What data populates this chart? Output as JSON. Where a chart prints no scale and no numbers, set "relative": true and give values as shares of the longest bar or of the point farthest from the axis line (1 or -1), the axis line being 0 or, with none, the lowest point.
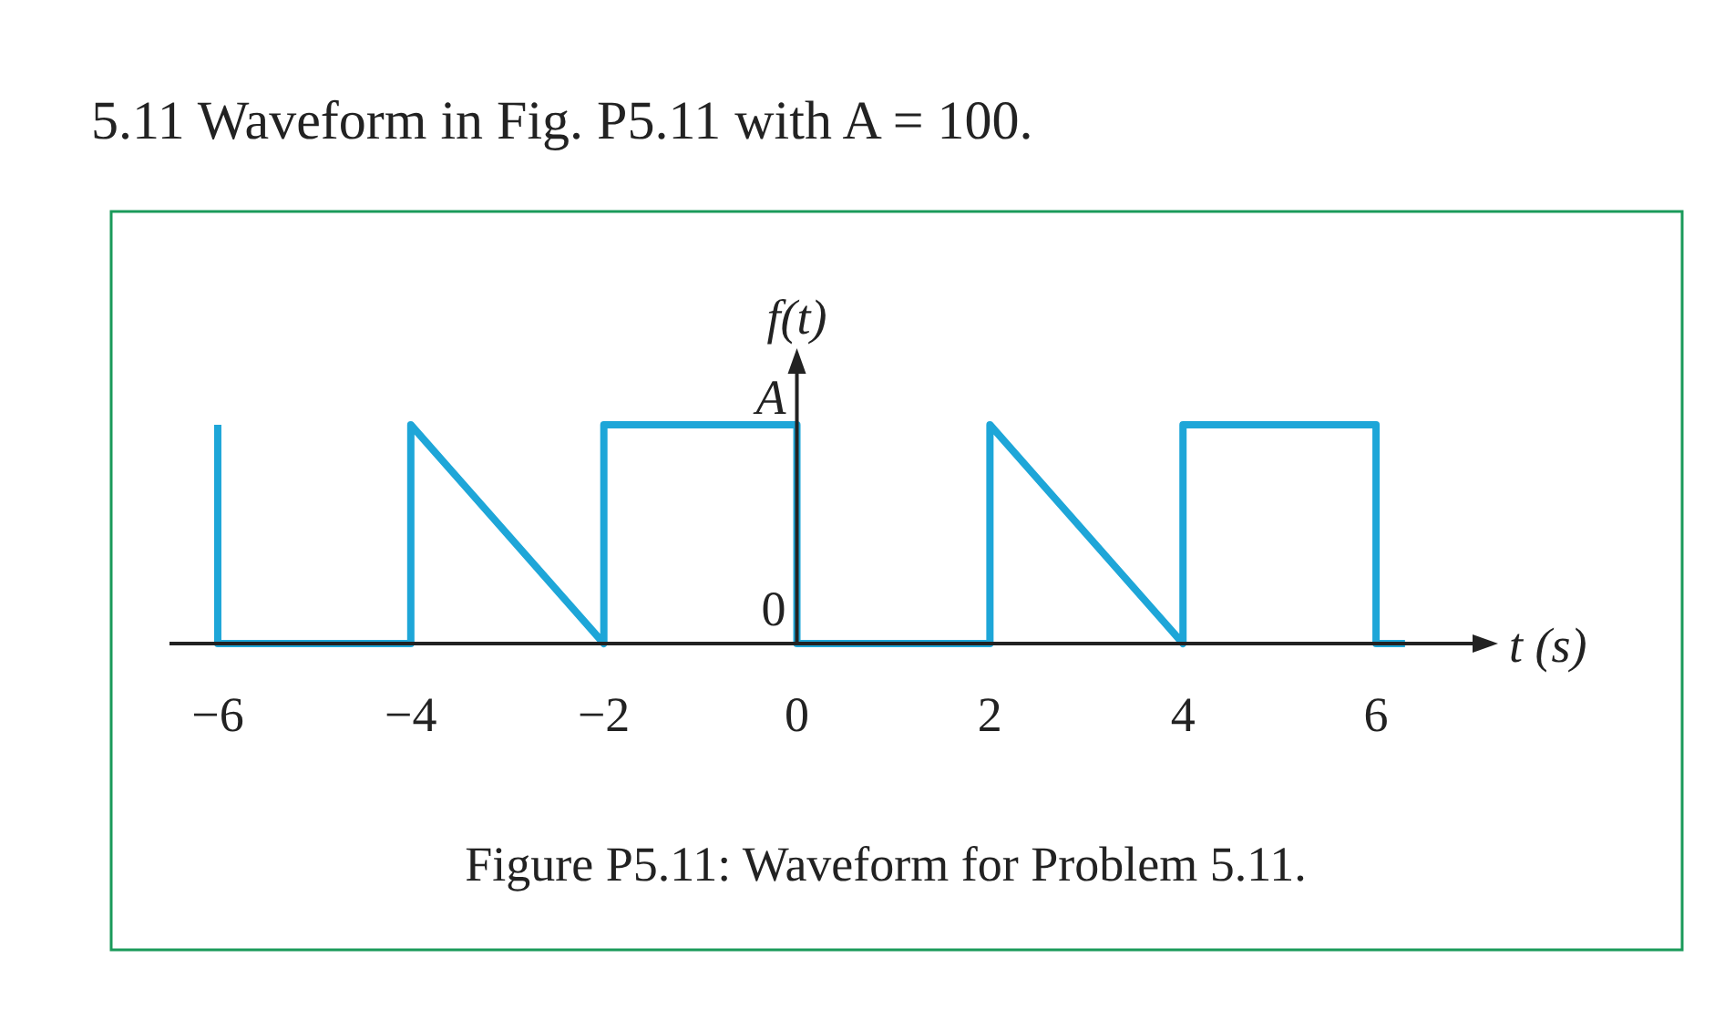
{
  "chart_data": {
    "type": "line",
    "title": "5.11 Waveform in Fig. P5.11 with A = 100.",
    "xlabel": "t (s)",
    "ylabel": "f(t)",
    "relative": true,
    "x": [
      -6,
      -6,
      -4,
      -4,
      -2,
      -2,
      0,
      0,
      2,
      2,
      4,
      4,
      6,
      6,
      6.3
    ],
    "series": [
      {
        "color": "#1ea6d8",
        "values": [
          1,
          0,
          0,
          1,
          0,
          1,
          1,
          0,
          0,
          1,
          0,
          1,
          1,
          0,
          0
        ]
      }
    ],
    "xlim": [
      -6.5,
      7
    ],
    "xticks": [
      {
        "value": -6,
        "label": "−6"
      },
      {
        "value": -4,
        "label": "−4"
      },
      {
        "value": -2,
        "label": "−2"
      },
      0,
      2,
      4,
      6
    ],
    "annotations": [
      {
        "text": "A",
        "x": 0,
        "y": 1
      },
      {
        "text": "0",
        "x": 0,
        "y": 0
      },
      "Figure P5.11: Waveform for Problem 5.11."
    ]
  }
}
